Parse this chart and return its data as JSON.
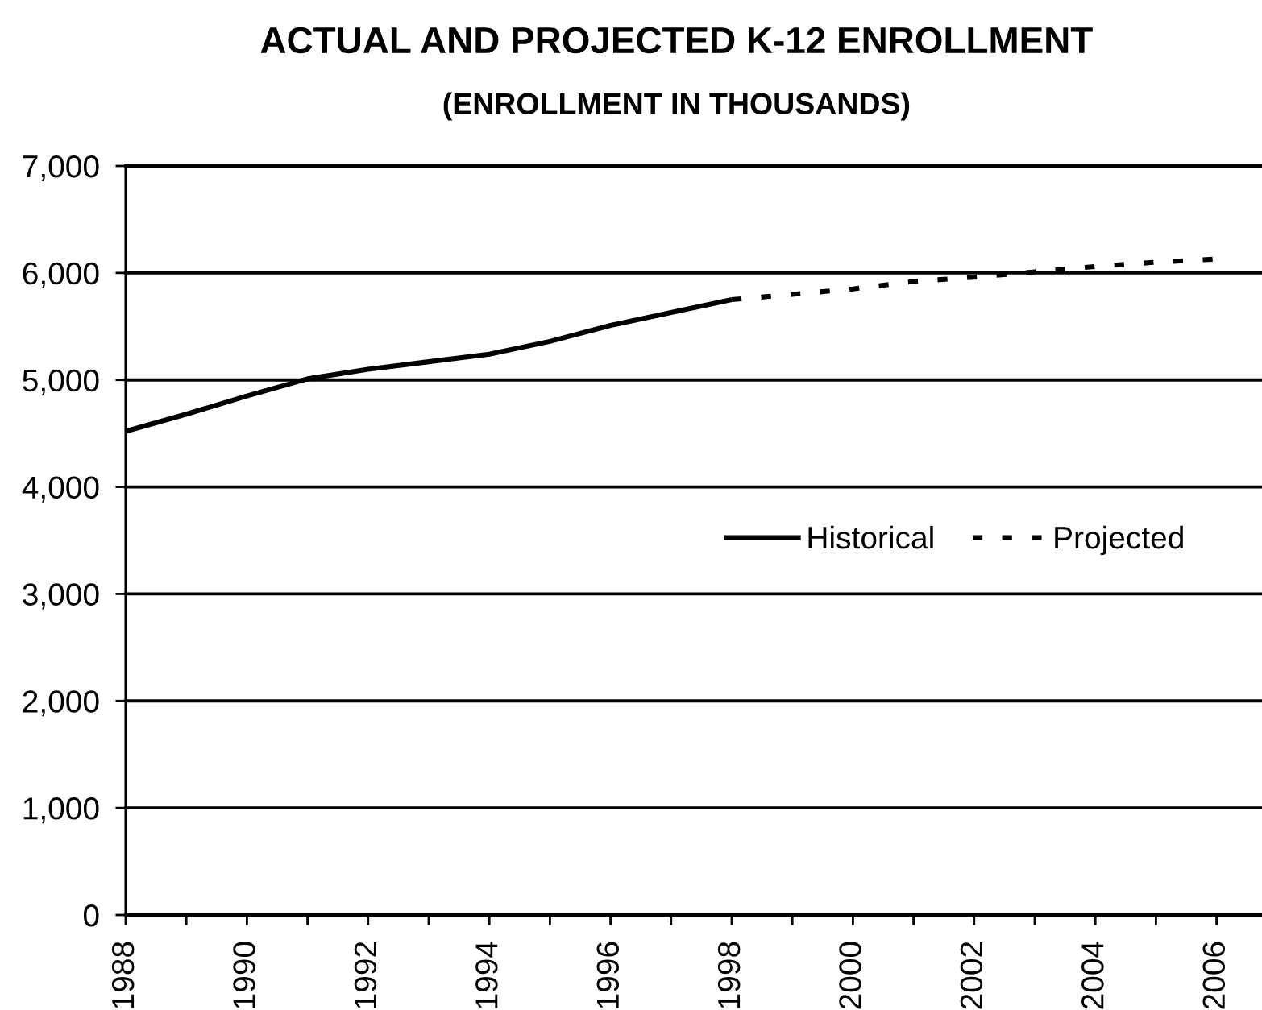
{
  "chart_data": {
    "type": "line",
    "title": "ACTUAL AND PROJECTED K-12 ENROLLMENT",
    "subtitle": "(ENROLLMENT IN THOUSANDS)",
    "series": [
      {
        "name": "Historical",
        "color": "#000000",
        "line_style": "solid",
        "x": [
          1988,
          1989,
          1990,
          1991,
          1992,
          1993,
          1994,
          1995,
          1996,
          1997,
          1998
        ],
        "values": [
          4520,
          4680,
          4850,
          5010,
          5100,
          5170,
          5240,
          5360,
          5510,
          5630,
          5750
        ]
      },
      {
        "name": "Projected",
        "color": "#000000",
        "line_style": "dashed",
        "x": [
          1998,
          1999,
          2000,
          2001,
          2002,
          2003,
          2004,
          2005,
          2006
        ],
        "values": [
          5750,
          5800,
          5850,
          5920,
          5960,
          6010,
          6060,
          6100,
          6130
        ]
      }
    ],
    "xlim": [
      1988,
      2006.75
    ],
    "xticks": [
      1988,
      {
        "value": 1989,
        "label": null
      },
      1990,
      {
        "value": 1991,
        "label": null
      },
      1992,
      {
        "value": 1993,
        "label": null
      },
      1994,
      {
        "value": 1995,
        "label": null
      },
      1996,
      {
        "value": 1997,
        "label": null
      },
      1998,
      {
        "value": 1999,
        "label": null
      },
      2000,
      {
        "value": 2001,
        "label": null
      },
      2002,
      {
        "value": 2003,
        "label": null
      },
      2004,
      {
        "value": 2005,
        "label": null
      },
      2006
    ],
    "ylim": [
      0,
      7000
    ],
    "yticks": [
      0,
      {
        "value": 1000,
        "label": "1,000"
      },
      {
        "value": 2000,
        "label": "2,000"
      },
      {
        "value": 3000,
        "label": "3,000"
      },
      {
        "value": 4000,
        "label": "4,000"
      },
      {
        "value": 5000,
        "label": "5,000"
      },
      {
        "value": 6000,
        "label": "6,000"
      },
      {
        "value": 7000,
        "label": "7,000"
      }
    ],
    "grid": "y",
    "legend": "right"
  }
}
